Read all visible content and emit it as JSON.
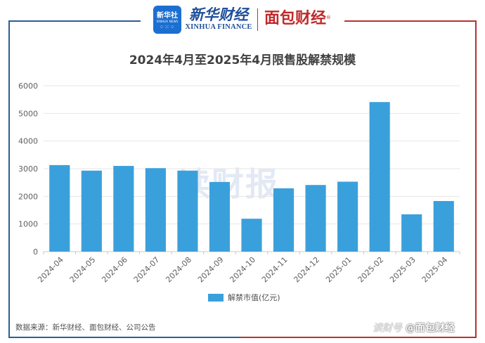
{
  "header": {
    "xinhua_badge_text": "新华社",
    "xinhua_badge_en": "XINHUA NEWS",
    "xinhua_name_cn": "新华财经",
    "xinhua_name_en": "XINHUA FINANCE",
    "mianbao_name": "面包财经",
    "registered_mark": "®"
  },
  "chart_data": {
    "type": "bar",
    "title": "2024年4月至2025年4月限售股解禁规模",
    "categories": [
      "2024-04",
      "2024-05",
      "2024-06",
      "2024-07",
      "2024-08",
      "2024-09",
      "2024-10",
      "2024-11",
      "2024-12",
      "2025-01",
      "2025-02",
      "2025-03",
      "2025-04"
    ],
    "series": [
      {
        "name": "解禁市值(亿元)",
        "values": [
          3130,
          2930,
          3100,
          3020,
          2930,
          2520,
          1190,
          2290,
          2410,
          2530,
          5410,
          1350,
          1830
        ]
      }
    ],
    "yticks": [
      0,
      1000,
      2000,
      3000,
      4000,
      5000,
      6000
    ],
    "ylim": [
      0,
      6000
    ],
    "bar_color": "#3aa0dc",
    "grid": true,
    "legend": "bottom-center"
  },
  "watermark_center": "读财报",
  "legend_label": "解禁市值(亿元)",
  "source": "数据来源：新华财经、面包财经、公司公告",
  "watermark_bottom": {
    "faint": "读财号",
    "main": "@面包财经"
  },
  "colors": {
    "brand_blue": "#2f5d93",
    "brand_red": "#b5342f",
    "bar": "#3aa0dc"
  }
}
